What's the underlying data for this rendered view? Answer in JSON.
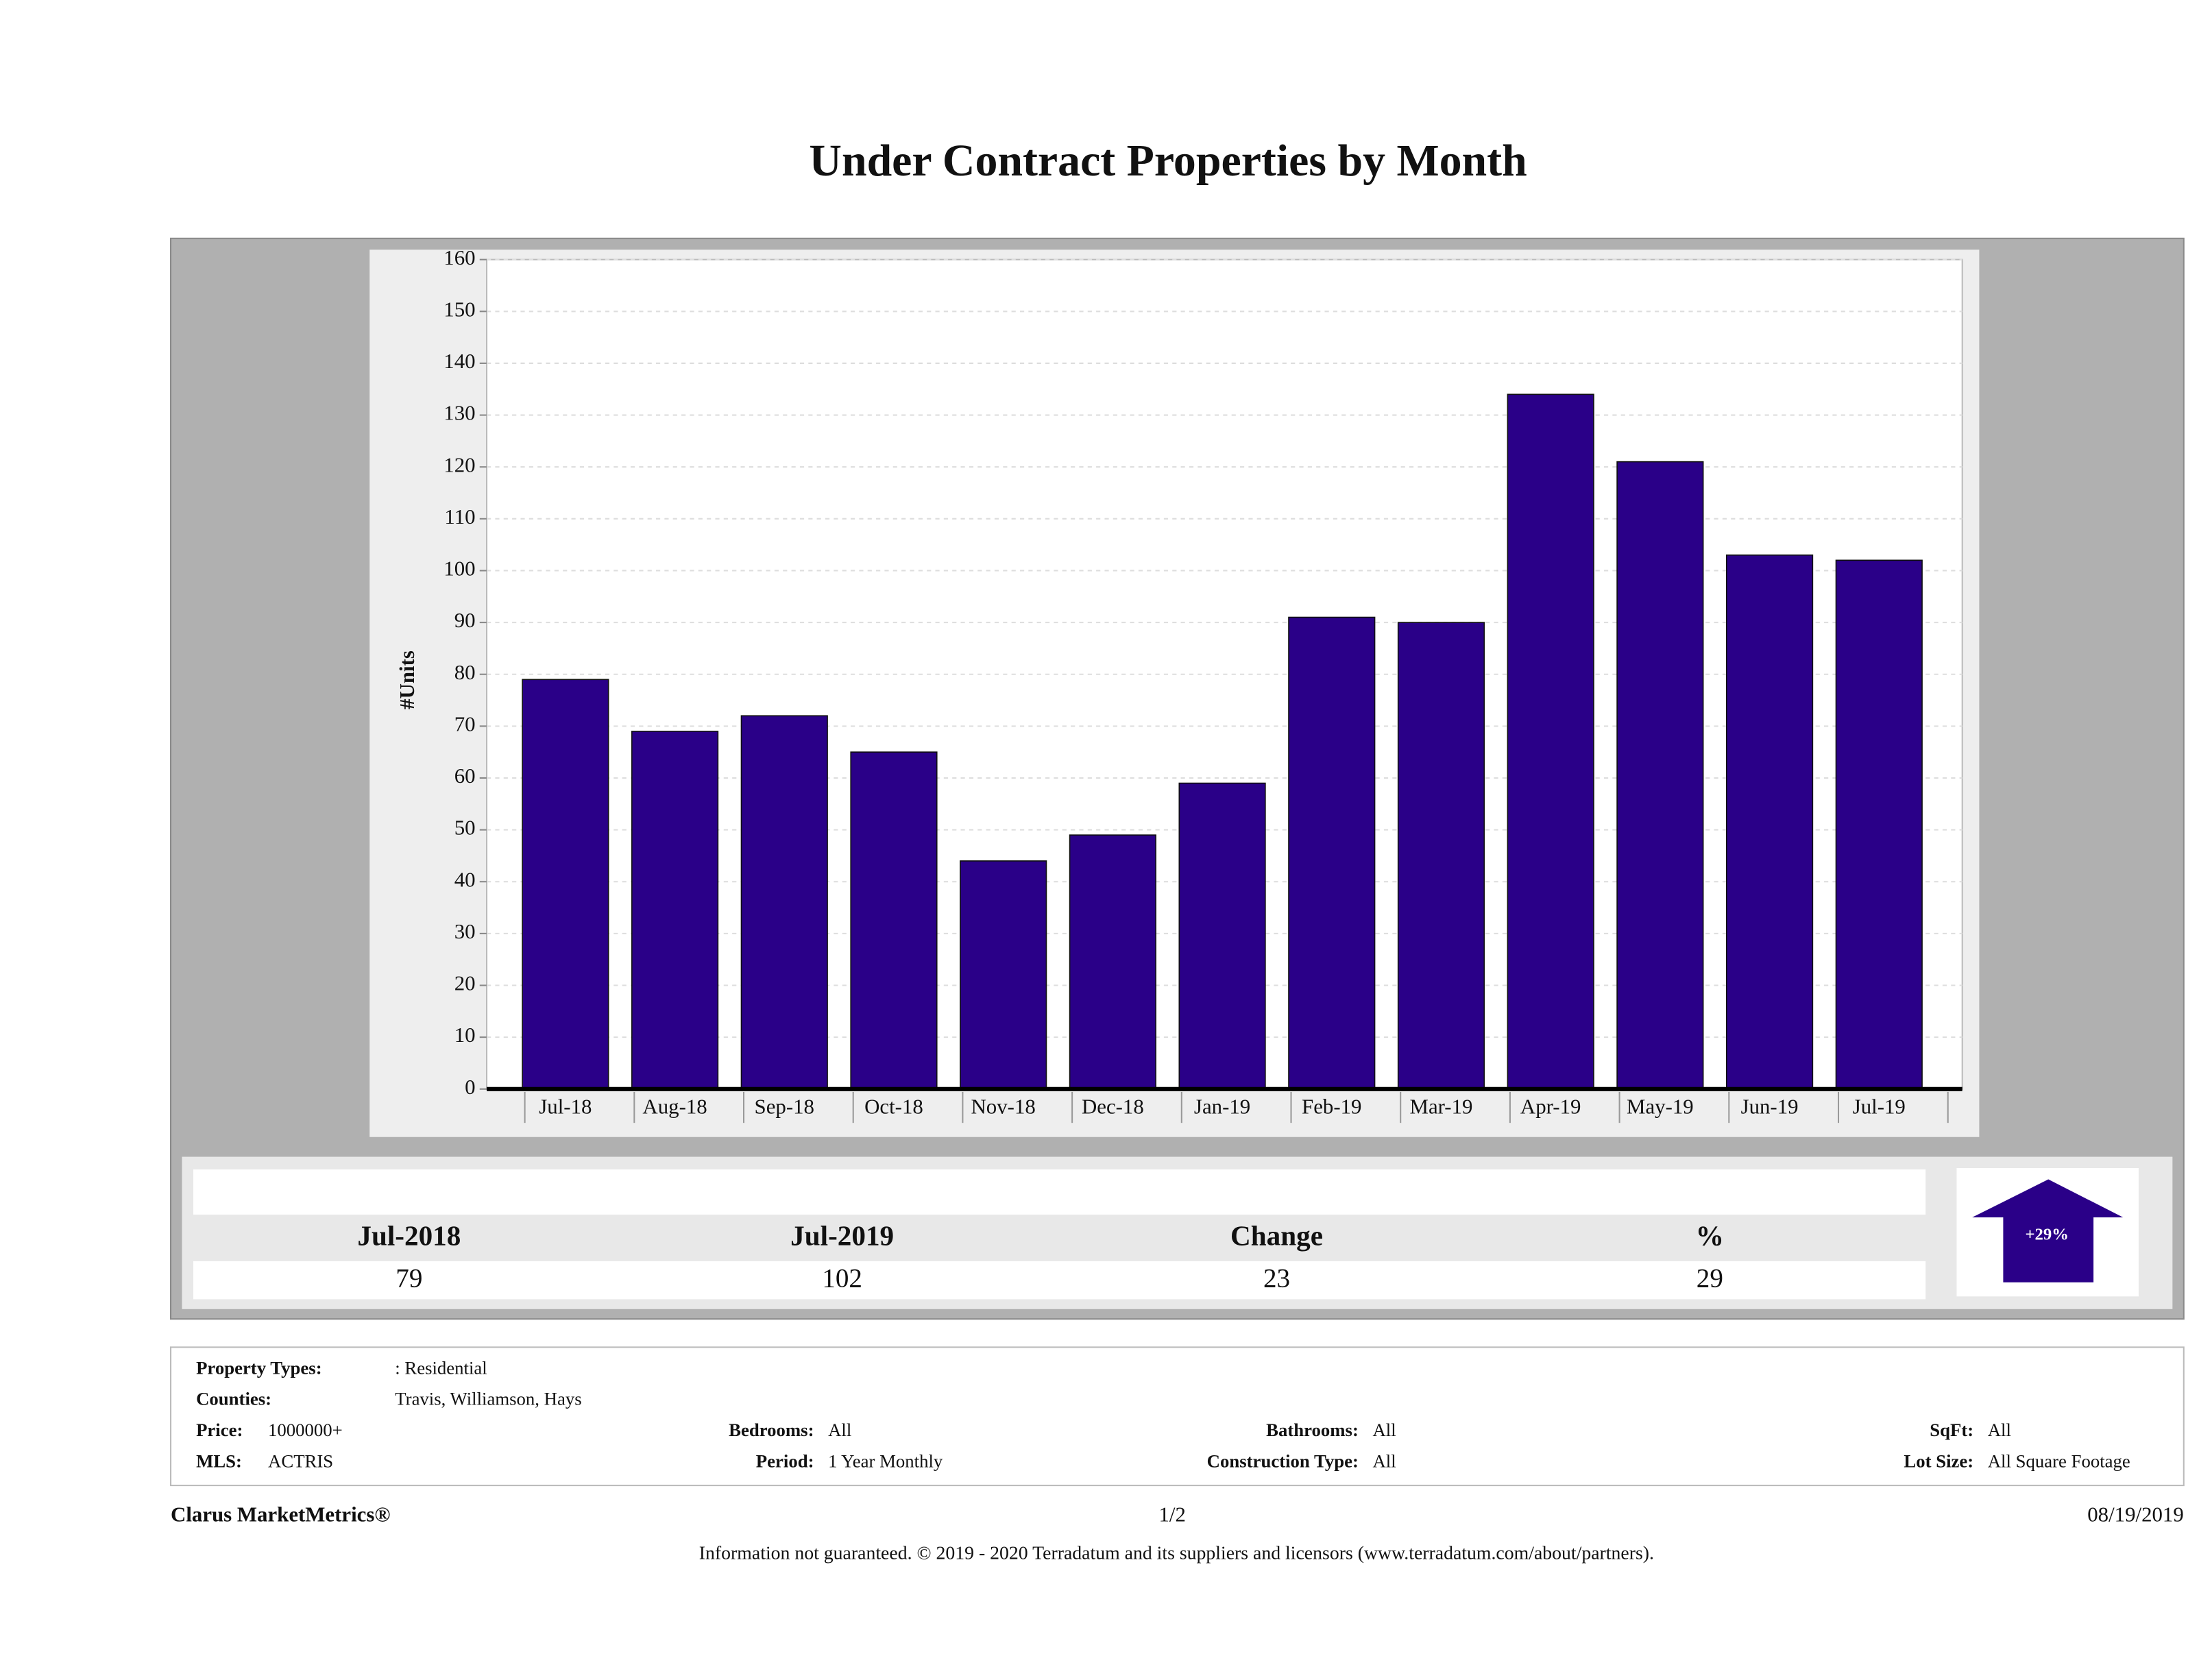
{
  "chart_data": {
    "type": "bar",
    "title": "Under Contract Properties by Month",
    "y_label": "#Units",
    "categories": [
      "Jul-18",
      "Aug-18",
      "Sep-18",
      "Oct-18",
      "Nov-18",
      "Dec-18",
      "Jan-19",
      "Feb-19",
      "Mar-19",
      "Apr-19",
      "May-19",
      "Jun-19",
      "Jul-19"
    ],
    "values": [
      79,
      69,
      72,
      65,
      44,
      49,
      59,
      91,
      90,
      134,
      121,
      103,
      102
    ],
    "color": "#2a0088",
    "ylim": [
      0,
      160
    ],
    "yticks": [
      0,
      10,
      20,
      30,
      40,
      50,
      60,
      70,
      80,
      90,
      100,
      110,
      120,
      130,
      140,
      150,
      160
    ],
    "grid": true
  },
  "summary": {
    "headers": [
      "Jul-2018",
      "Jul-2019",
      "Change",
      "%"
    ],
    "values": [
      79,
      102,
      23,
      29
    ],
    "badge": "+29%"
  },
  "filters": [
    {
      "label": "Property Types:",
      "value": ": Residential"
    },
    {
      "label": "Counties:",
      "value": "Travis, Williamson, Hays"
    },
    {
      "label": "Price:",
      "value": "1000000+"
    },
    {
      "label": "MLS:",
      "value": "ACTRIS"
    },
    {
      "label": "Bedrooms:",
      "value": "All"
    },
    {
      "label": "Period:",
      "value": "1 Year Monthly"
    },
    {
      "label": "Bathrooms:",
      "value": "All"
    },
    {
      "label": "Construction Type:",
      "value": "All"
    },
    {
      "label": "SqFt:",
      "value": "All"
    },
    {
      "label": "Lot Size:",
      "value": "All Square Footage"
    }
  ],
  "footer": {
    "brand": "Clarus MarketMetrics®",
    "page": "1/2",
    "date": "08/19/2019",
    "disclaimer": "Information not guaranteed. © 2019 - 2020 Terradatum and its suppliers and licensors (www.terradatum.com/about/partners)."
  }
}
